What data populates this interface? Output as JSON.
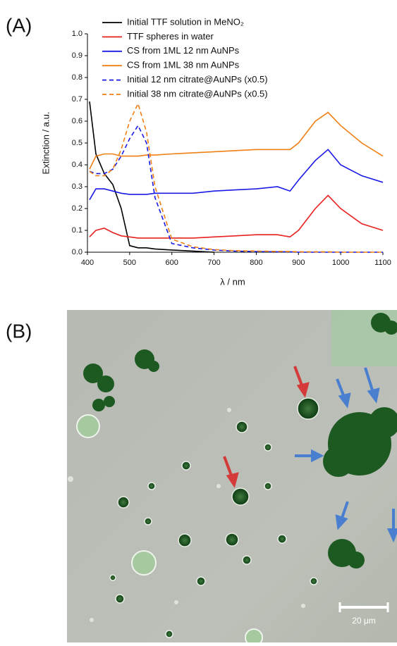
{
  "chart_data": {
    "type": "line",
    "panel_label": "(A)",
    "x_label": "λ / nm",
    "y_label": "Extinction / a.u.",
    "x": [
      405,
      420,
      440,
      460,
      480,
      500,
      520,
      540,
      560,
      600,
      650,
      700,
      750,
      800,
      850,
      880,
      900,
      940,
      970,
      1000,
      1050,
      1100
    ],
    "series": [
      {
        "name": "Initial TTF solution in MeNO₂",
        "color": "#000000",
        "style": "solid",
        "values": [
          0.69,
          0.45,
          0.36,
          0.31,
          0.2,
          0.03,
          0.02,
          0.02,
          0.015,
          0.01,
          0.005,
          0.0,
          null,
          null,
          null,
          null,
          null,
          null,
          null,
          null,
          null,
          null
        ]
      },
      {
        "name": "TTF spheres in water",
        "color": "#e8211f",
        "style": "solid",
        "values": [
          0.07,
          0.1,
          0.11,
          0.09,
          0.075,
          0.07,
          0.065,
          0.065,
          0.065,
          0.065,
          0.065,
          0.07,
          0.075,
          0.08,
          0.08,
          0.07,
          0.1,
          0.2,
          0.26,
          0.2,
          0.13,
          0.1
        ]
      },
      {
        "name": "CS from 1ML 12 nm AuNPs",
        "color": "#1a1ae6",
        "style": "solid",
        "values": [
          0.24,
          0.29,
          0.29,
          0.28,
          0.27,
          0.265,
          0.265,
          0.265,
          0.27,
          0.27,
          0.27,
          0.28,
          0.285,
          0.29,
          0.3,
          0.28,
          0.33,
          0.42,
          0.47,
          0.4,
          0.35,
          0.32
        ]
      },
      {
        "name": "CS from 1ML 38 nm AuNPs",
        "color": "#f07f14",
        "style": "solid",
        "values": [
          0.38,
          0.44,
          0.45,
          0.45,
          0.44,
          0.44,
          0.44,
          0.445,
          0.445,
          0.45,
          0.455,
          0.46,
          0.465,
          0.47,
          0.47,
          0.47,
          0.5,
          0.6,
          0.64,
          0.58,
          0.5,
          0.44
        ]
      },
      {
        "name": "Initial 12 nm citrate@AuNPs (x0.5)",
        "color": "#1a1ae6",
        "style": "dashed",
        "values": [
          0.37,
          0.36,
          0.36,
          0.38,
          0.44,
          0.52,
          0.58,
          0.5,
          0.25,
          0.04,
          0.02,
          0.01,
          0.005,
          0.003,
          0.002,
          0.002,
          0.0,
          0.0,
          0.0,
          0.0,
          0.0,
          0.0
        ]
      },
      {
        "name": "Initial 38 nm citrate@AuNPs (x0.5)",
        "color": "#f07f14",
        "style": "dashed",
        "values": [
          0.37,
          0.35,
          0.35,
          0.38,
          0.47,
          0.6,
          0.68,
          0.55,
          0.3,
          0.06,
          0.025,
          0.012,
          0.007,
          0.005,
          0.004,
          0.003,
          0.002,
          0.002,
          0.002,
          0.0,
          0.0,
          0.0
        ]
      }
    ],
    "xlim": [
      400,
      1100
    ],
    "xticks": [
      400,
      500,
      600,
      700,
      800,
      900,
      1000,
      1100
    ],
    "ylim": [
      0,
      1
    ],
    "yticks": [
      {
        "value": 0,
        "label": "0.0"
      },
      0.1,
      0.2,
      0.3,
      0.4,
      0.5,
      0.6,
      0.7,
      0.8,
      0.9,
      {
        "value": 1,
        "label": "1.0"
      }
    ],
    "legend": "upper right"
  },
  "micrograph": {
    "panel_label": "(B)",
    "scale_bar": "20 μm"
  }
}
